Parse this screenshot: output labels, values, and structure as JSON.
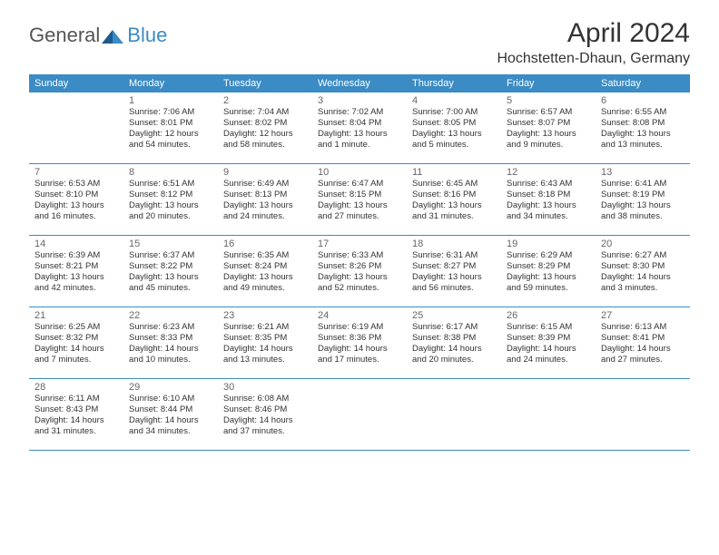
{
  "logo": {
    "text1": "General",
    "text2": "Blue"
  },
  "title": {
    "month": "April 2024",
    "location": "Hochstetten-Dhaun, Germany"
  },
  "dayNames": [
    "Sunday",
    "Monday",
    "Tuesday",
    "Wednesday",
    "Thursday",
    "Friday",
    "Saturday"
  ],
  "colors": {
    "headerBar": "#3b8bc4",
    "headerText": "#ffffff",
    "bodyText": "#333333",
    "dayNumber": "#666666",
    "rowBorder": "#3b8bc4"
  },
  "weeks": [
    [
      {
        "n": "",
        "sunrise": "",
        "sunset": "",
        "daylight1": "",
        "daylight2": ""
      },
      {
        "n": "1",
        "sunrise": "Sunrise: 7:06 AM",
        "sunset": "Sunset: 8:01 PM",
        "daylight1": "Daylight: 12 hours",
        "daylight2": "and 54 minutes."
      },
      {
        "n": "2",
        "sunrise": "Sunrise: 7:04 AM",
        "sunset": "Sunset: 8:02 PM",
        "daylight1": "Daylight: 12 hours",
        "daylight2": "and 58 minutes."
      },
      {
        "n": "3",
        "sunrise": "Sunrise: 7:02 AM",
        "sunset": "Sunset: 8:04 PM",
        "daylight1": "Daylight: 13 hours",
        "daylight2": "and 1 minute."
      },
      {
        "n": "4",
        "sunrise": "Sunrise: 7:00 AM",
        "sunset": "Sunset: 8:05 PM",
        "daylight1": "Daylight: 13 hours",
        "daylight2": "and 5 minutes."
      },
      {
        "n": "5",
        "sunrise": "Sunrise: 6:57 AM",
        "sunset": "Sunset: 8:07 PM",
        "daylight1": "Daylight: 13 hours",
        "daylight2": "and 9 minutes."
      },
      {
        "n": "6",
        "sunrise": "Sunrise: 6:55 AM",
        "sunset": "Sunset: 8:08 PM",
        "daylight1": "Daylight: 13 hours",
        "daylight2": "and 13 minutes."
      }
    ],
    [
      {
        "n": "7",
        "sunrise": "Sunrise: 6:53 AM",
        "sunset": "Sunset: 8:10 PM",
        "daylight1": "Daylight: 13 hours",
        "daylight2": "and 16 minutes."
      },
      {
        "n": "8",
        "sunrise": "Sunrise: 6:51 AM",
        "sunset": "Sunset: 8:12 PM",
        "daylight1": "Daylight: 13 hours",
        "daylight2": "and 20 minutes."
      },
      {
        "n": "9",
        "sunrise": "Sunrise: 6:49 AM",
        "sunset": "Sunset: 8:13 PM",
        "daylight1": "Daylight: 13 hours",
        "daylight2": "and 24 minutes."
      },
      {
        "n": "10",
        "sunrise": "Sunrise: 6:47 AM",
        "sunset": "Sunset: 8:15 PM",
        "daylight1": "Daylight: 13 hours",
        "daylight2": "and 27 minutes."
      },
      {
        "n": "11",
        "sunrise": "Sunrise: 6:45 AM",
        "sunset": "Sunset: 8:16 PM",
        "daylight1": "Daylight: 13 hours",
        "daylight2": "and 31 minutes."
      },
      {
        "n": "12",
        "sunrise": "Sunrise: 6:43 AM",
        "sunset": "Sunset: 8:18 PM",
        "daylight1": "Daylight: 13 hours",
        "daylight2": "and 34 minutes."
      },
      {
        "n": "13",
        "sunrise": "Sunrise: 6:41 AM",
        "sunset": "Sunset: 8:19 PM",
        "daylight1": "Daylight: 13 hours",
        "daylight2": "and 38 minutes."
      }
    ],
    [
      {
        "n": "14",
        "sunrise": "Sunrise: 6:39 AM",
        "sunset": "Sunset: 8:21 PM",
        "daylight1": "Daylight: 13 hours",
        "daylight2": "and 42 minutes."
      },
      {
        "n": "15",
        "sunrise": "Sunrise: 6:37 AM",
        "sunset": "Sunset: 8:22 PM",
        "daylight1": "Daylight: 13 hours",
        "daylight2": "and 45 minutes."
      },
      {
        "n": "16",
        "sunrise": "Sunrise: 6:35 AM",
        "sunset": "Sunset: 8:24 PM",
        "daylight1": "Daylight: 13 hours",
        "daylight2": "and 49 minutes."
      },
      {
        "n": "17",
        "sunrise": "Sunrise: 6:33 AM",
        "sunset": "Sunset: 8:26 PM",
        "daylight1": "Daylight: 13 hours",
        "daylight2": "and 52 minutes."
      },
      {
        "n": "18",
        "sunrise": "Sunrise: 6:31 AM",
        "sunset": "Sunset: 8:27 PM",
        "daylight1": "Daylight: 13 hours",
        "daylight2": "and 56 minutes."
      },
      {
        "n": "19",
        "sunrise": "Sunrise: 6:29 AM",
        "sunset": "Sunset: 8:29 PM",
        "daylight1": "Daylight: 13 hours",
        "daylight2": "and 59 minutes."
      },
      {
        "n": "20",
        "sunrise": "Sunrise: 6:27 AM",
        "sunset": "Sunset: 8:30 PM",
        "daylight1": "Daylight: 14 hours",
        "daylight2": "and 3 minutes."
      }
    ],
    [
      {
        "n": "21",
        "sunrise": "Sunrise: 6:25 AM",
        "sunset": "Sunset: 8:32 PM",
        "daylight1": "Daylight: 14 hours",
        "daylight2": "and 7 minutes."
      },
      {
        "n": "22",
        "sunrise": "Sunrise: 6:23 AM",
        "sunset": "Sunset: 8:33 PM",
        "daylight1": "Daylight: 14 hours",
        "daylight2": "and 10 minutes."
      },
      {
        "n": "23",
        "sunrise": "Sunrise: 6:21 AM",
        "sunset": "Sunset: 8:35 PM",
        "daylight1": "Daylight: 14 hours",
        "daylight2": "and 13 minutes."
      },
      {
        "n": "24",
        "sunrise": "Sunrise: 6:19 AM",
        "sunset": "Sunset: 8:36 PM",
        "daylight1": "Daylight: 14 hours",
        "daylight2": "and 17 minutes."
      },
      {
        "n": "25",
        "sunrise": "Sunrise: 6:17 AM",
        "sunset": "Sunset: 8:38 PM",
        "daylight1": "Daylight: 14 hours",
        "daylight2": "and 20 minutes."
      },
      {
        "n": "26",
        "sunrise": "Sunrise: 6:15 AM",
        "sunset": "Sunset: 8:39 PM",
        "daylight1": "Daylight: 14 hours",
        "daylight2": "and 24 minutes."
      },
      {
        "n": "27",
        "sunrise": "Sunrise: 6:13 AM",
        "sunset": "Sunset: 8:41 PM",
        "daylight1": "Daylight: 14 hours",
        "daylight2": "and 27 minutes."
      }
    ],
    [
      {
        "n": "28",
        "sunrise": "Sunrise: 6:11 AM",
        "sunset": "Sunset: 8:43 PM",
        "daylight1": "Daylight: 14 hours",
        "daylight2": "and 31 minutes."
      },
      {
        "n": "29",
        "sunrise": "Sunrise: 6:10 AM",
        "sunset": "Sunset: 8:44 PM",
        "daylight1": "Daylight: 14 hours",
        "daylight2": "and 34 minutes."
      },
      {
        "n": "30",
        "sunrise": "Sunrise: 6:08 AM",
        "sunset": "Sunset: 8:46 PM",
        "daylight1": "Daylight: 14 hours",
        "daylight2": "and 37 minutes."
      },
      {
        "n": "",
        "sunrise": "",
        "sunset": "",
        "daylight1": "",
        "daylight2": ""
      },
      {
        "n": "",
        "sunrise": "",
        "sunset": "",
        "daylight1": "",
        "daylight2": ""
      },
      {
        "n": "",
        "sunrise": "",
        "sunset": "",
        "daylight1": "",
        "daylight2": ""
      },
      {
        "n": "",
        "sunrise": "",
        "sunset": "",
        "daylight1": "",
        "daylight2": ""
      }
    ]
  ]
}
